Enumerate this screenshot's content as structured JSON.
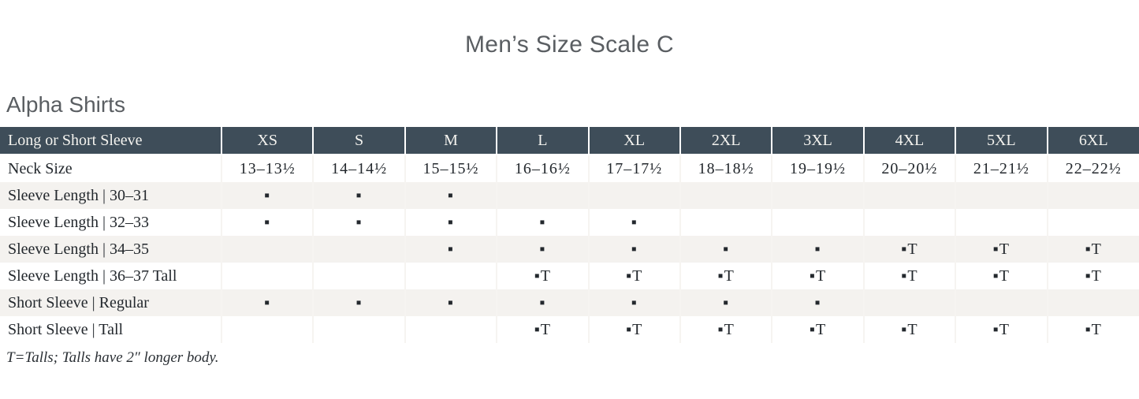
{
  "page_title": "Men’s Size Scale C",
  "section_title": "Alpha Shirts",
  "table": {
    "header": [
      "Long or Short Sleeve",
      "XS",
      "S",
      "M",
      "L",
      "XL",
      "2XL",
      "3XL",
      "4XL",
      "5XL",
      "6XL"
    ],
    "rows": [
      {
        "label": "Neck Size",
        "cells": [
          "13–13½",
          "14–14½",
          "15–15½",
          "16–16½",
          "17–17½",
          "18–18½",
          "19–19½",
          "20–20½",
          "21–21½",
          "22–22½"
        ]
      },
      {
        "label": "Sleeve Length | 30–31",
        "cells": [
          "▪",
          "▪",
          "▪",
          "",
          "",
          "",
          "",
          "",
          "",
          ""
        ]
      },
      {
        "label": "Sleeve Length | 32–33",
        "cells": [
          "▪",
          "▪",
          "▪",
          "▪",
          "▪",
          "",
          "",
          "",
          "",
          ""
        ]
      },
      {
        "label": "Sleeve Length | 34–35",
        "cells": [
          "",
          "",
          "▪",
          "▪",
          "▪",
          "▪",
          "▪",
          "▪T",
          "▪T",
          "▪T"
        ]
      },
      {
        "label": "Sleeve Length | 36–37 Tall",
        "cells": [
          "",
          "",
          "",
          "▪T",
          "▪T",
          "▪T",
          "▪T",
          "▪T",
          "▪T",
          "▪T"
        ]
      },
      {
        "label": "Short Sleeve | Regular",
        "cells": [
          "▪",
          "▪",
          "▪",
          "▪",
          "▪",
          "▪",
          "▪",
          "",
          "",
          ""
        ]
      },
      {
        "label": "Short Sleeve | Tall",
        "cells": [
          "",
          "",
          "",
          "▪T",
          "▪T",
          "▪T",
          "▪T",
          "▪T",
          "▪T",
          "▪T"
        ]
      }
    ]
  },
  "marks": {
    "available": "▪",
    "available_tall": "▪T"
  },
  "footnote": "T=Talls; Talls have 2″ longer body.",
  "colors": {
    "header_bg": "#3e4d59",
    "header_text": "#f4f3ef",
    "row_alt_bg": "#f4f2ef",
    "title_text": "#5a5e62",
    "body_text": "#23282d"
  }
}
